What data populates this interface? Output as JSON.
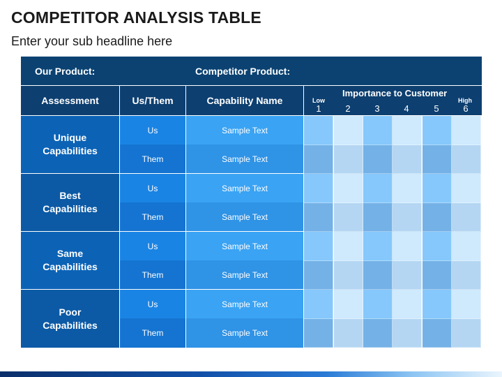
{
  "title": "COMPETITOR ANALYSIS TABLE",
  "subtitle": "Enter your sub headline here",
  "header": {
    "our_product": "Our Product:",
    "competitor_product": "Competitor Product:",
    "assessment": "Assessment",
    "us_them": "Us/Them",
    "capability_name": "Capability Name",
    "importance": "Importance to Customer",
    "low": "Low",
    "high": "High",
    "scale": [
      "1",
      "2",
      "3",
      "4",
      "5",
      "6"
    ]
  },
  "groups": [
    {
      "label_line1": "Unique",
      "label_line2": "Capabilities",
      "rows": [
        {
          "who": "Us",
          "capability": "Sample Text"
        },
        {
          "who": "Them",
          "capability": "Sample Text"
        }
      ]
    },
    {
      "label_line1": "Best",
      "label_line2": "Capabilities",
      "rows": [
        {
          "who": "Us",
          "capability": "Sample Text"
        },
        {
          "who": "Them",
          "capability": "Sample Text"
        }
      ]
    },
    {
      "label_line1": "Same",
      "label_line2": "Capabilities",
      "rows": [
        {
          "who": "Us",
          "capability": "Sample Text"
        },
        {
          "who": "Them",
          "capability": "Sample Text"
        }
      ]
    },
    {
      "label_line1": "Poor",
      "label_line2": "Capabilities",
      "rows": [
        {
          "who": "Us",
          "capability": "Sample Text"
        },
        {
          "who": "Them",
          "capability": "Sample Text"
        }
      ]
    }
  ],
  "colors": {
    "us_row_cells": [
      "#86c8fb",
      "#cfe9fd",
      "#86c8fb",
      "#cfe9fd",
      "#86c8fb",
      "#cfe9fd"
    ],
    "them_row_cells": [
      "#74b1e6",
      "#b4d6f2",
      "#74b1e6",
      "#b4d6f2",
      "#74b1e6",
      "#b4d6f2"
    ]
  }
}
